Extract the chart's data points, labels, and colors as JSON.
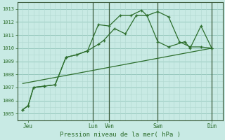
{
  "background_color": "#c8eae4",
  "grid_minor_color": "#b0d8d0",
  "grid_major_color": "#90c4b8",
  "line_color": "#2d6e2d",
  "vline_color": "#3a5a3a",
  "xlabel": "Pression niveau de la mer( hPa )",
  "ylim": [
    1004.5,
    1013.5
  ],
  "yticks": [
    1005,
    1006,
    1007,
    1008,
    1009,
    1010,
    1011,
    1012,
    1013
  ],
  "xlim": [
    0,
    19
  ],
  "xtick_labels": [
    "Jeu",
    "Lun",
    "Ven",
    "Sam",
    "Dim"
  ],
  "xtick_pos": [
    1,
    7,
    8.5,
    13,
    18
  ],
  "vline_pos": [
    7,
    8.5,
    13,
    18
  ],
  "line1_x": [
    0.5,
    1.0,
    1.5,
    2.5,
    3.5,
    4.5,
    5.5,
    6.5,
    7.5,
    8.0,
    9.0,
    10.0,
    11.0,
    12.0,
    13.0,
    14.0,
    15.0,
    16.0,
    17.0,
    18.0
  ],
  "line1_y": [
    1005.3,
    1005.6,
    1007.0,
    1007.1,
    1007.2,
    1009.3,
    1009.5,
    1009.8,
    1010.3,
    1010.6,
    1011.5,
    1011.1,
    1012.5,
    1012.5,
    1012.8,
    1012.4,
    1010.5,
    1010.1,
    1010.1,
    1010.0
  ],
  "line2_x": [
    0.5,
    1.0,
    1.5,
    2.5,
    3.5,
    4.5,
    5.5,
    6.5,
    7.5,
    8.5,
    9.5,
    10.5,
    11.5,
    12.0,
    13.0,
    14.0,
    15.5,
    16.0,
    17.0,
    18.0
  ],
  "line2_y": [
    1005.3,
    1005.6,
    1007.0,
    1007.1,
    1007.2,
    1009.3,
    1009.5,
    1009.8,
    1011.8,
    1011.7,
    1012.5,
    1012.5,
    1012.9,
    1012.5,
    1010.5,
    1010.1,
    1010.5,
    1010.0,
    1011.7,
    1010.0
  ],
  "line3_x": [
    0.5,
    18.0
  ],
  "line3_y": [
    1007.3,
    1010.0
  ],
  "figsize": [
    3.2,
    2.0
  ],
  "dpi": 100
}
